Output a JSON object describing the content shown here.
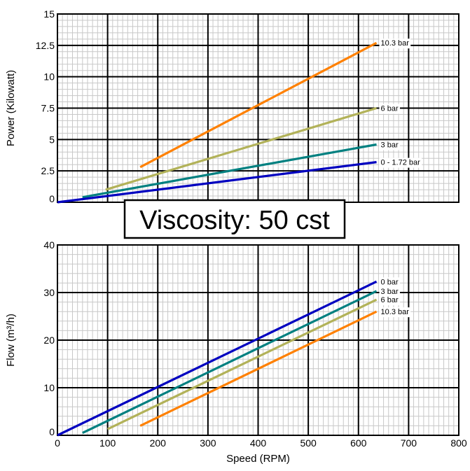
{
  "banner": {
    "text": "Viscosity: 50 cst"
  },
  "chart_data": [
    {
      "type": "line",
      "title": "",
      "xlabel": "",
      "ylabel": "Power (Kilowatt)",
      "xlim": [
        0,
        800
      ],
      "ylim": [
        0,
        15
      ],
      "grid": true,
      "legend": "inline labels at right end of lines",
      "x_ticks": [],
      "x_tick_labels": [],
      "y_ticks": [
        0,
        2.5,
        5,
        7.5,
        10,
        12.5,
        15
      ],
      "y_tick_labels": [
        "0",
        "2.5",
        "5",
        "7.5",
        "10",
        "12.5",
        "15"
      ],
      "series": [
        {
          "name": "10.3 bar",
          "color": "#ff8000",
          "x": [
            165,
            636
          ],
          "y": [
            2.8,
            12.7
          ]
        },
        {
          "name": "6 bar",
          "color": "#b2b259",
          "x": [
            96,
            636
          ],
          "y": [
            1.0,
            7.5
          ]
        },
        {
          "name": "3 bar",
          "color": "#008080",
          "x": [
            50,
            636
          ],
          "y": [
            0.4,
            4.6
          ]
        },
        {
          "name": "0 - 1.72 bar",
          "color": "#0000c0",
          "x": [
            0,
            636
          ],
          "y": [
            0.0,
            3.2
          ]
        }
      ]
    },
    {
      "type": "line",
      "title": "",
      "xlabel": "Speed (RPM)",
      "ylabel": "Flow (m³/h)",
      "xlim": [
        0,
        800
      ],
      "ylim": [
        0,
        40
      ],
      "grid": true,
      "legend": "inline labels at right end of lines",
      "x_ticks": [
        0,
        100,
        200,
        300,
        400,
        500,
        600,
        700,
        800
      ],
      "x_tick_labels": [
        "0",
        "100",
        "200",
        "300",
        "400",
        "500",
        "600",
        "700",
        "800"
      ],
      "y_ticks": [
        0,
        10,
        20,
        30,
        40
      ],
      "y_tick_labels": [
        "0",
        "10",
        "20",
        "30",
        "40"
      ],
      "series": [
        {
          "name": "0 bar",
          "color": "#0000c0",
          "x": [
            0,
            636
          ],
          "y": [
            0,
            32.3
          ]
        },
        {
          "name": "3 bar",
          "color": "#008080",
          "x": [
            50,
            636
          ],
          "y": [
            0.5,
            30.3
          ]
        },
        {
          "name": "6 bar",
          "color": "#b2b259",
          "x": [
            100,
            636
          ],
          "y": [
            1.3,
            28.5
          ]
        },
        {
          "name": "10.3 bar",
          "color": "#ff8000",
          "x": [
            165,
            636
          ],
          "y": [
            2.0,
            26.0
          ]
        }
      ]
    }
  ]
}
